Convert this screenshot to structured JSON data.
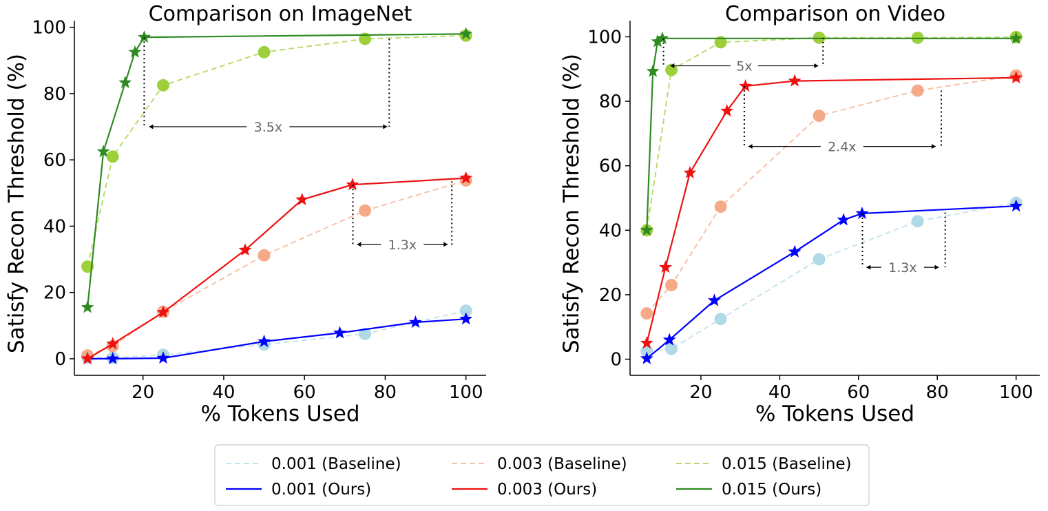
{
  "chart_data": [
    {
      "type": "line",
      "title": "Comparison on ImageNet",
      "xlabel": "% Tokens Used",
      "ylabel": "Satisfy Recon Threshold (%)",
      "xlim": [
        3,
        105
      ],
      "ylim": [
        -5,
        102
      ],
      "xticks": [
        20,
        40,
        60,
        80,
        100
      ],
      "yticks": [
        0,
        20,
        40,
        60,
        80,
        100
      ],
      "grid": false,
      "series": [
        {
          "name": "0.001 (Baseline)",
          "style": "dashed",
          "marker": "circle",
          "color": "#add8e6",
          "x": [
            6.25,
            12.5,
            25,
            50,
            75,
            100
          ],
          "y": [
            0.3,
            0.3,
            1.2,
            4.3,
            7.5,
            14.5
          ]
        },
        {
          "name": "0.003 (Baseline)",
          "style": "dashed",
          "marker": "circle",
          "color": "#f4a582",
          "x": [
            6.25,
            12.5,
            25,
            50,
            75,
            100
          ],
          "y": [
            1.0,
            3.8,
            14.2,
            31.2,
            44.7,
            53.8
          ]
        },
        {
          "name": "0.015 (Baseline)",
          "style": "dashed",
          "marker": "circle",
          "color": "#9acd32",
          "x": [
            6.25,
            12.5,
            25,
            50,
            75,
            100
          ],
          "y": [
            27.8,
            61.0,
            82.5,
            92.5,
            96.5,
            97.5
          ]
        },
        {
          "name": "0.001 (Ours)",
          "style": "solid",
          "marker": "star",
          "color": "#0000ff",
          "x": [
            6.25,
            12.5,
            25,
            50,
            68.75,
            87.5,
            100
          ],
          "y": [
            0,
            0,
            0.2,
            5.2,
            7.8,
            11.0,
            12.0
          ]
        },
        {
          "name": "0.003 (Ours)",
          "style": "solid",
          "marker": "star",
          "color": "#ee1111",
          "x": [
            6.25,
            12.5,
            25,
            45.3,
            59.4,
            71.9,
            100
          ],
          "y": [
            0,
            4.5,
            14.0,
            32.8,
            48.0,
            52.5,
            54.5
          ]
        },
        {
          "name": "0.015 (Ours)",
          "style": "solid",
          "marker": "star",
          "color": "#2e8b22",
          "x": [
            6.25,
            10.2,
            15.6,
            18.0,
            20.3,
            100
          ],
          "y": [
            15.5,
            62.5,
            83.3,
            92.5,
            97.0,
            98.0
          ]
        }
      ],
      "annotations": [
        {
          "text": "3.5x",
          "from_x": 21.5,
          "to_x": 80.5,
          "y": 70,
          "vline_left": {
            "x": 20.3,
            "y_from": 97,
            "y_to": 70
          },
          "vline_right": {
            "x": 81,
            "y_from": 96.5,
            "y_to": 70
          }
        },
        {
          "text": "1.3x",
          "from_x": 73,
          "to_x": 95.5,
          "y": 34.5,
          "vline_left": {
            "x": 72,
            "y_from": 52.5,
            "y_to": 34
          },
          "vline_right": {
            "x": 96.5,
            "y_from": 53.5,
            "y_to": 34
          }
        }
      ]
    },
    {
      "type": "line",
      "title": "Comparison on Video",
      "xlabel": "% Tokens Used",
      "ylabel": "Satisfy Recon Threshold (%)",
      "xlim": [
        2,
        106
      ],
      "ylim": [
        -5,
        105
      ],
      "xticks": [
        20,
        40,
        60,
        80,
        100
      ],
      "yticks": [
        0,
        20,
        40,
        60,
        80,
        100
      ],
      "grid": false,
      "series": [
        {
          "name": "0.001 (Baseline)",
          "style": "dashed",
          "marker": "circle",
          "color": "#add8e6",
          "x": [
            6.25,
            12.5,
            25,
            50,
            75,
            100
          ],
          "y": [
            2.5,
            3.2,
            12.5,
            31.0,
            42.8,
            48.5
          ]
        },
        {
          "name": "0.003 (Baseline)",
          "style": "dashed",
          "marker": "circle",
          "color": "#f4a582",
          "x": [
            6.25,
            12.5,
            25,
            50,
            75,
            100
          ],
          "y": [
            14.2,
            23.0,
            47.3,
            75.5,
            83.3,
            88.0
          ]
        },
        {
          "name": "0.015 (Baseline)",
          "style": "dashed",
          "marker": "circle",
          "color": "#9acd32",
          "x": [
            6.25,
            12.5,
            25,
            50,
            75,
            100
          ],
          "y": [
            40.0,
            89.7,
            98.3,
            99.7,
            99.7,
            99.9
          ]
        },
        {
          "name": "0.001 (Ours)",
          "style": "solid",
          "marker": "star",
          "color": "#0000ff",
          "x": [
            6.25,
            12.0,
            23.4,
            43.8,
            56.2,
            60.9,
            100
          ],
          "y": [
            0.2,
            6.0,
            18.2,
            33.3,
            43.2,
            45.2,
            47.5
          ]
        },
        {
          "name": "0.003 (Ours)",
          "style": "solid",
          "marker": "star",
          "color": "#ee1111",
          "x": [
            6.25,
            11.0,
            17.2,
            26.6,
            31.3,
            43.8,
            100
          ],
          "y": [
            5.0,
            28.5,
            57.8,
            77.0,
            84.7,
            86.3,
            87.3
          ]
        },
        {
          "name": "0.015 (Ours)",
          "style": "solid",
          "marker": "star",
          "color": "#2e8b22",
          "x": [
            6.25,
            7.8,
            9.0,
            10.2,
            100
          ],
          "y": [
            40.0,
            89.3,
            98.5,
            99.5,
            99.5
          ]
        }
      ],
      "annotations": [
        {
          "text": "5x",
          "from_x": 12.2,
          "to_x": 49.8,
          "y": 91,
          "vline_left": {
            "x": 10.5,
            "y_from": 99.5,
            "y_to": 91
          },
          "vline_right": {
            "x": 51,
            "y_from": 99.7,
            "y_to": 91
          }
        },
        {
          "text": "2.4x",
          "from_x": 32,
          "to_x": 79.6,
          "y": 66,
          "vline_left": {
            "x": 31,
            "y_from": 84.7,
            "y_to": 66
          },
          "vline_right": {
            "x": 81,
            "y_from": 83.3,
            "y_to": 66
          }
        },
        {
          "text": "1.3x",
          "from_x": 62,
          "to_x": 80.4,
          "y": 28.5,
          "vline_left": {
            "x": 61,
            "y_from": 45.2,
            "y_to": 28.5
          },
          "vline_right": {
            "x": 82,
            "y_from": 45.5,
            "y_to": 28.5
          }
        }
      ]
    }
  ],
  "legend": {
    "placement": "bottom-center",
    "columns": [
      [
        "0.001 (Baseline)",
        "0.001 (Ours)"
      ],
      [
        "0.003 (Baseline)",
        "0.003 (Ours)"
      ],
      [
        "0.015 (Baseline)",
        "0.015 (Ours)"
      ]
    ]
  }
}
